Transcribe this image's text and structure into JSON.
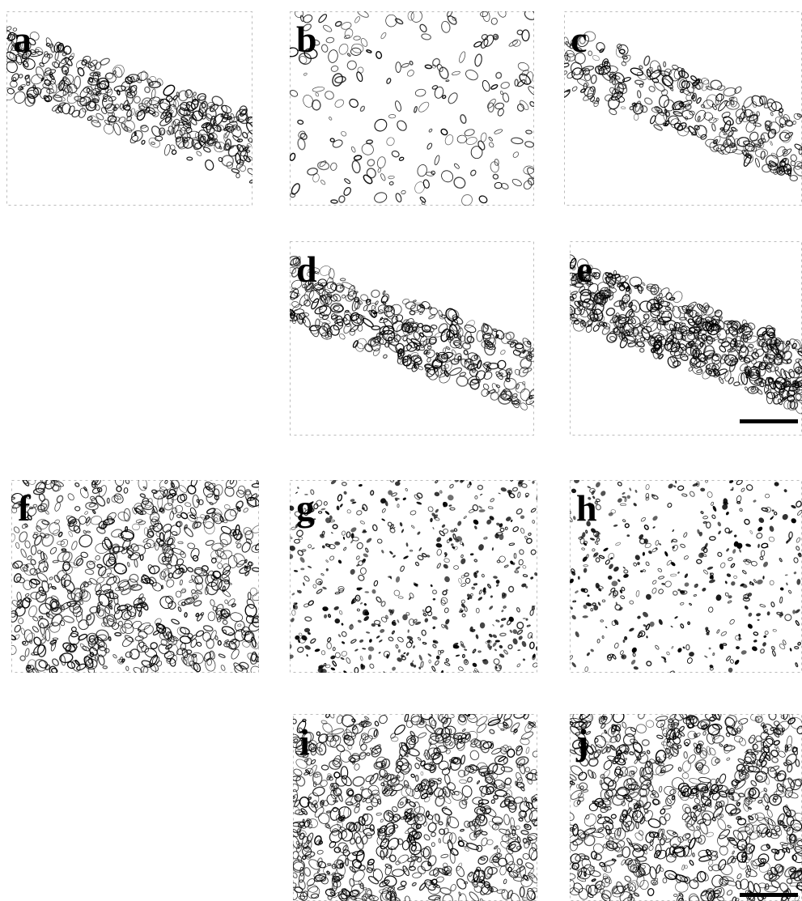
{
  "figure": {
    "ink_color": "#000000",
    "background_color": "#ffffff",
    "panels": [
      {
        "id": "a",
        "label": "a",
        "texture": "band-cells",
        "density": 0.45,
        "has_scale_bar": false
      },
      {
        "id": "b",
        "label": "b",
        "texture": "sparse-cells",
        "density": 0.22,
        "has_scale_bar": false
      },
      {
        "id": "c",
        "label": "c",
        "texture": "band-cells",
        "density": 0.35,
        "has_scale_bar": false
      },
      {
        "id": "d",
        "label": "d",
        "texture": "band-cells",
        "density": 0.45,
        "has_scale_bar": false
      },
      {
        "id": "e",
        "label": "e",
        "texture": "band-cells",
        "density": 0.65,
        "has_scale_bar": true
      },
      {
        "id": "f",
        "label": "f",
        "texture": "dense-tissue",
        "density": 0.85,
        "has_scale_bar": false
      },
      {
        "id": "g",
        "label": "g",
        "texture": "dotted-tissue",
        "density": 0.6,
        "has_scale_bar": false
      },
      {
        "id": "h",
        "label": "h",
        "texture": "dotted-tissue",
        "density": 0.45,
        "has_scale_bar": false
      },
      {
        "id": "i",
        "label": "i",
        "texture": "dense-tissue",
        "density": 0.95,
        "has_scale_bar": false
      },
      {
        "id": "j",
        "label": "j",
        "texture": "dense-tissue",
        "density": 0.95,
        "has_scale_bar": true
      }
    ]
  }
}
